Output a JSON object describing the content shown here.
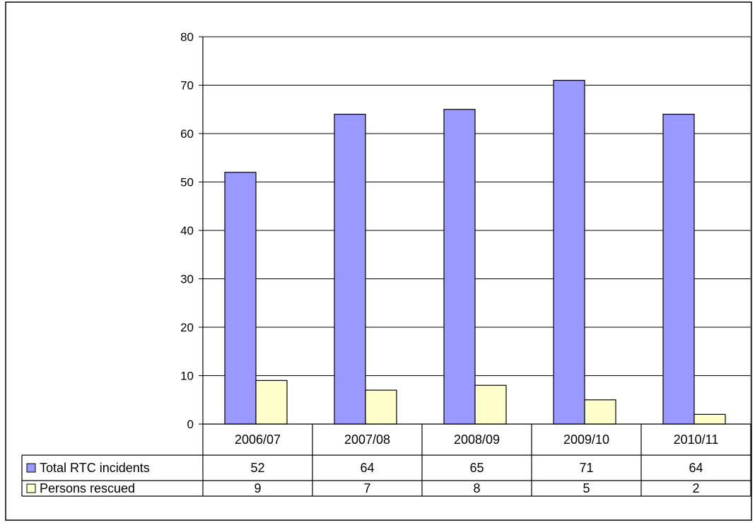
{
  "chart_data": {
    "type": "bar",
    "title": "",
    "xlabel": "",
    "ylabel": "",
    "ylim": [
      0,
      80
    ],
    "yticks": [
      0,
      10,
      20,
      30,
      40,
      50,
      60,
      70,
      80
    ],
    "grid": true,
    "legend": "data-table",
    "categories": [
      "2006/07",
      "2007/08",
      "2008/09",
      "2009/10",
      "2010/11"
    ],
    "series": [
      {
        "name": "Total RTC incidents",
        "color": "#9999ff",
        "values": [
          52,
          64,
          65,
          71,
          64
        ]
      },
      {
        "name": "Persons rescued",
        "color": "#ffffcc",
        "values": [
          9,
          7,
          8,
          5,
          2
        ]
      }
    ]
  }
}
